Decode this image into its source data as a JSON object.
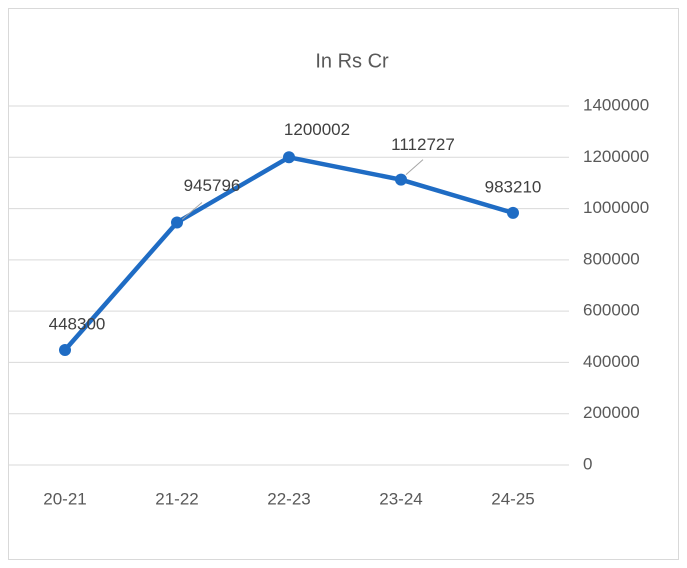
{
  "chart_data": {
    "type": "line",
    "title": "In Rs Cr",
    "categories": [
      "20-21",
      "21-22",
      "22-23",
      "23-24",
      "24-25"
    ],
    "series": [
      {
        "name": "In Rs Cr",
        "color": "#1f6cc4",
        "values": [
          448300,
          945796,
          1200002,
          1112727,
          983210
        ]
      }
    ],
    "ylim": [
      0,
      1400000
    ],
    "yticks": [
      0,
      200000,
      400000,
      600000,
      800000,
      1000000,
      1200000,
      1400000
    ],
    "grid": true,
    "y_axis_side": "right"
  }
}
